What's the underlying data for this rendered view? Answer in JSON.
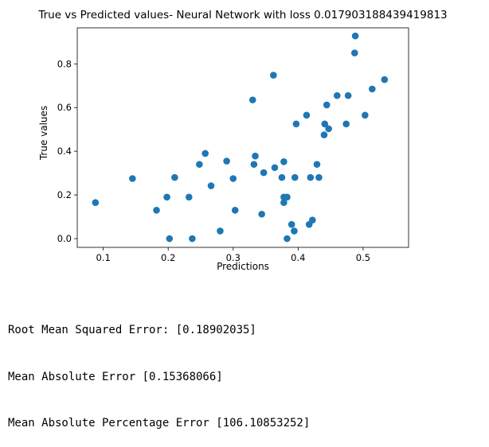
{
  "chart_data": {
    "type": "scatter",
    "title": "True vs Predicted values- Neural Network with loss 0.017903188439419813",
    "xlabel": "Predictions",
    "ylabel": "True values",
    "xlim": [
      0.06,
      0.57
    ],
    "ylim": [
      -0.04,
      0.965
    ],
    "xticks": [
      0.1,
      0.2,
      0.3,
      0.4,
      0.5
    ],
    "xtick_labels": [
      "0.1",
      "0.2",
      "0.3",
      "0.4",
      "0.5"
    ],
    "yticks": [
      0.0,
      0.2,
      0.4,
      0.6,
      0.8
    ],
    "ytick_labels": [
      "0.0",
      "0.2",
      "0.4",
      "0.6",
      "0.8"
    ],
    "grid": false,
    "marker_color": "#1f77b4",
    "points": [
      [
        0.088,
        0.165
      ],
      [
        0.145,
        0.275
      ],
      [
        0.182,
        0.13
      ],
      [
        0.198,
        0.19
      ],
      [
        0.202,
        0.0
      ],
      [
        0.21,
        0.28
      ],
      [
        0.232,
        0.19
      ],
      [
        0.237,
        0.0
      ],
      [
        0.248,
        0.34
      ],
      [
        0.257,
        0.39
      ],
      [
        0.266,
        0.242
      ],
      [
        0.28,
        0.035
      ],
      [
        0.29,
        0.355
      ],
      [
        0.3,
        0.275
      ],
      [
        0.303,
        0.13
      ],
      [
        0.33,
        0.635
      ],
      [
        0.332,
        0.34
      ],
      [
        0.334,
        0.378
      ],
      [
        0.344,
        0.112
      ],
      [
        0.347,
        0.302
      ],
      [
        0.362,
        0.748
      ],
      [
        0.364,
        0.325
      ],
      [
        0.375,
        0.28
      ],
      [
        0.378,
        0.352
      ],
      [
        0.378,
        0.165
      ],
      [
        0.378,
        0.19
      ],
      [
        0.383,
        0.19
      ],
      [
        0.383,
        0.0
      ],
      [
        0.39,
        0.065
      ],
      [
        0.394,
        0.035
      ],
      [
        0.395,
        0.28
      ],
      [
        0.397,
        0.525
      ],
      [
        0.413,
        0.565
      ],
      [
        0.417,
        0.065
      ],
      [
        0.419,
        0.28
      ],
      [
        0.422,
        0.085
      ],
      [
        0.429,
        0.34
      ],
      [
        0.432,
        0.28
      ],
      [
        0.44,
        0.475
      ],
      [
        0.441,
        0.525
      ],
      [
        0.444,
        0.612
      ],
      [
        0.447,
        0.503
      ],
      [
        0.46,
        0.655
      ],
      [
        0.474,
        0.525
      ],
      [
        0.477,
        0.655
      ],
      [
        0.487,
        0.85
      ],
      [
        0.488,
        0.928
      ],
      [
        0.503,
        0.565
      ],
      [
        0.514,
        0.685
      ],
      [
        0.533,
        0.728
      ]
    ]
  },
  "metrics": [
    "Root Mean Squared Error: [0.18902035]",
    "Mean Absolute Error [0.15368066]",
    "Mean Absolute Percentage Error [106.10853252]"
  ]
}
